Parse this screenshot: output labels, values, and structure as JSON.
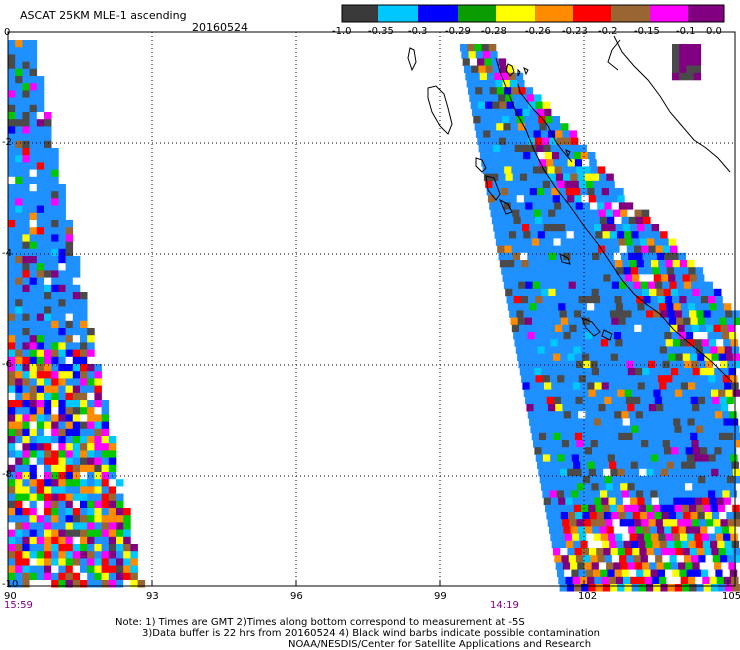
{
  "header": {
    "title": "ASCAT 25KM MLE-1 ascending",
    "date": "20160524"
  },
  "colorbar": {
    "colors": [
      "#3a3a3a",
      "#00c8ff",
      "#0000ff",
      "#0a9c00",
      "#ffff00",
      "#ff8c00",
      "#ff0000",
      "#996633",
      "#ff00ff",
      "#800080"
    ],
    "labels": [
      "-1.0",
      "-0.35",
      "-0.3",
      "-0.29",
      "-0.28",
      "-0.26",
      "-0.23",
      "-0.2",
      "-0.15",
      "-0.1",
      "0.0"
    ]
  },
  "map": {
    "lon_labels": [
      "90",
      "93",
      "96",
      "99",
      "102",
      "105"
    ],
    "lat_labels": [
      "0",
      "-2",
      "-4",
      "-6",
      "-8",
      "-10"
    ],
    "time_labels": [
      "15:59",
      "14:19"
    ],
    "palette": {
      "ocean": "#1e90ff",
      "low": "#4a4a4a",
      "swath_colors": [
        "#ffff00",
        "#ff0000",
        "#ff00ff",
        "#800080",
        "#00c800",
        "#0000ff",
        "#ff8c00",
        "#996633",
        "#00c8ff",
        "#ffffff"
      ]
    }
  },
  "footer": {
    "line1": "Note: 1) Times are GMT 2)Times along bottom correspond to measurement at -5S",
    "line2": "3)Data buffer is 22 hrs from 20160524 4) Black wind barbs indicate possible contamination",
    "line3": "NOAA/NESDIS/Center for Satellite Applications and Research"
  }
}
